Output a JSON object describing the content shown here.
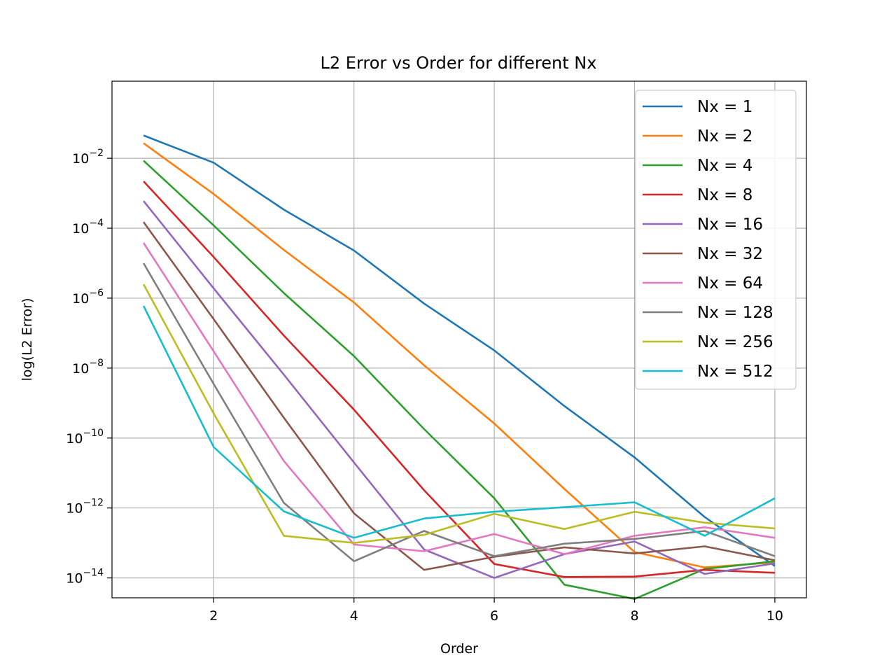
{
  "chart_data": {
    "type": "line",
    "title": "L2 Error vs Order for different Nx",
    "xlabel": "Order",
    "ylabel": "log(L2 Error)",
    "xscale": "linear",
    "yscale": "log",
    "xlim": [
      0.55,
      10.45
    ],
    "ylim": [
      2.7e-15,
      1.6
    ],
    "xticks": [
      2,
      4,
      6,
      8,
      10
    ],
    "yticks": [
      {
        "value": 0.01,
        "base": "10",
        "exp": "−2"
      },
      {
        "value": 0.0001,
        "base": "10",
        "exp": "−4"
      },
      {
        "value": 1e-06,
        "base": "10",
        "exp": "−6"
      },
      {
        "value": 1e-08,
        "base": "10",
        "exp": "−8"
      },
      {
        "value": 1e-10,
        "base": "10",
        "exp": "−10"
      },
      {
        "value": 1e-12,
        "base": "10",
        "exp": "−12"
      },
      {
        "value": 1e-14,
        "base": "10",
        "exp": "−14"
      }
    ],
    "grid": true,
    "legend_position": "top-right",
    "x": [
      1,
      2,
      3,
      4,
      5,
      6,
      7,
      8,
      9,
      10
    ],
    "series": [
      {
        "name": "Nx = 1",
        "color": "#1f77b4",
        "values": [
          0.045,
          0.0075,
          0.00034,
          2.3e-05,
          7e-07,
          3.2e-08,
          8.2e-10,
          2.8e-11,
          5.5e-13,
          2.2e-14
        ]
      },
      {
        "name": "Nx = 2",
        "color": "#ff7f0e",
        "values": [
          0.027,
          0.00095,
          2.4e-05,
          7.5e-07,
          1.2e-08,
          2.6e-10,
          3.5e-12,
          5.5e-14,
          2e-14,
          2.8e-14
        ]
      },
      {
        "name": "Nx = 4",
        "color": "#2ca02c",
        "values": [
          0.0085,
          0.00012,
          1.4e-06,
          2.2e-08,
          1.8e-10,
          1.9e-12,
          6.4e-15,
          2.5e-15,
          1.8e-14,
          3e-14
        ]
      },
      {
        "name": "Nx = 8",
        "color": "#d62728",
        "values": [
          0.0022,
          1.5e-05,
          8.5e-08,
          6.5e-10,
          3.2e-12,
          2.5e-14,
          1.06e-14,
          1.09e-14,
          1.7e-14,
          1.4e-14
        ]
      },
      {
        "name": "Nx = 16",
        "color": "#9467bd",
        "values": [
          0.0006,
          1.9e-06,
          6.5e-09,
          2e-11,
          6.5e-14,
          1e-14,
          4.8e-14,
          1.1e-13,
          1.3e-14,
          2.6e-14
        ]
      },
      {
        "name": "Nx = 32",
        "color": "#8c564b",
        "values": [
          0.00015,
          2.5e-07,
          3.8e-10,
          7e-13,
          1.7e-14,
          4e-14,
          7.5e-14,
          5e-14,
          8e-14,
          3.2e-14
        ]
      },
      {
        "name": "Nx = 64",
        "color": "#e377c2",
        "values": [
          3.8e-05,
          3e-08,
          2.2e-11,
          9e-14,
          5.8e-14,
          1.8e-13,
          4.8e-14,
          1.6e-13,
          2.8e-13,
          1.4e-13
        ]
      },
      {
        "name": "Nx = 128",
        "color": "#7f7f7f",
        "values": [
          1e-05,
          3.5e-09,
          1.4e-12,
          3e-14,
          2.2e-13,
          4.2e-14,
          9.5e-14,
          1.3e-13,
          2.2e-13,
          4.2e-14
        ]
      },
      {
        "name": "Nx = 256",
        "color": "#bcbd22",
        "values": [
          2.5e-06,
          5e-10,
          1.6e-13,
          1e-13,
          1.7e-13,
          6.8e-13,
          2.5e-13,
          7.8e-13,
          3.8e-13,
          2.6e-13
        ]
      },
      {
        "name": "Nx = 512",
        "color": "#17becf",
        "values": [
          6e-07,
          5.5e-11,
          8e-13,
          1.4e-13,
          5e-13,
          7.8e-13,
          1.05e-12,
          1.45e-12,
          1.6e-13,
          1.9e-12
        ]
      }
    ]
  }
}
